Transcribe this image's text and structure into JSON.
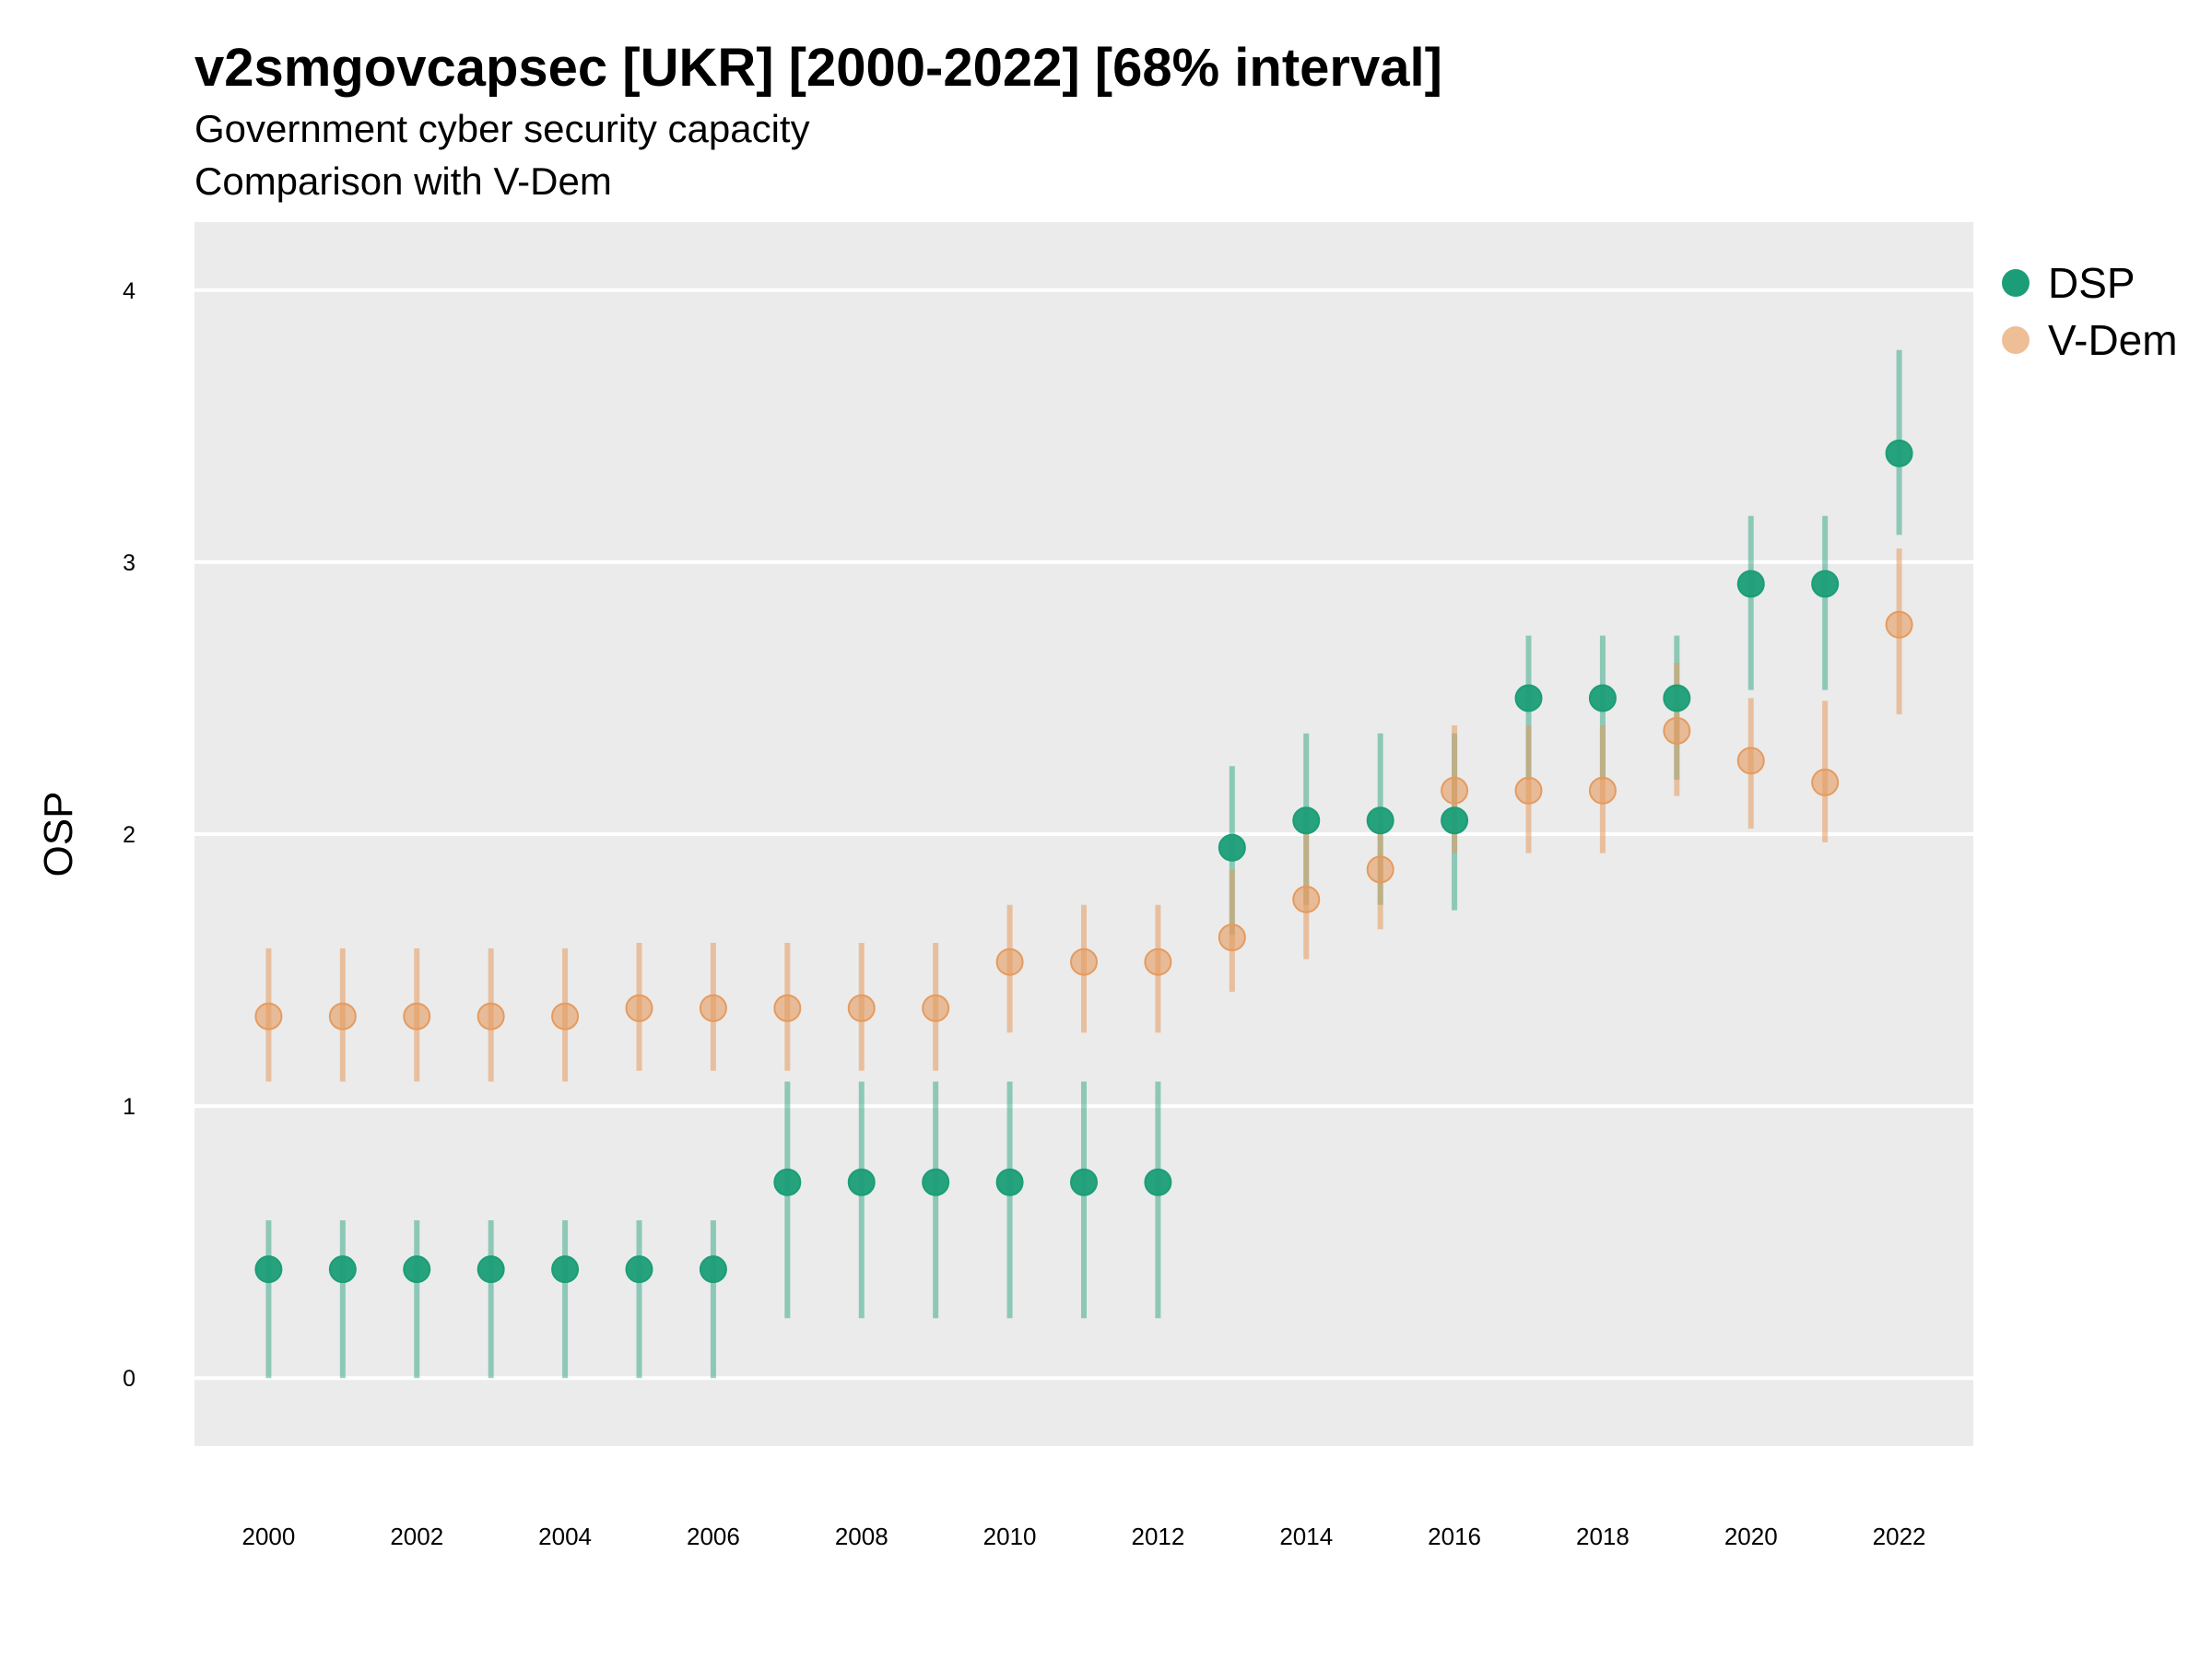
{
  "title": "v2smgovcapsec [UKR] [2000-2022] [68% interval]",
  "subtitle_line1": "Government cyber security capacity",
  "subtitle_line2": "Comparison with V-Dem",
  "colors": {
    "DSP": "#1b9e77",
    "V-Dem": "#e59b5f",
    "panel": "#ebebeb",
    "grid": "#ffffff"
  },
  "chart_data": {
    "type": "scatter",
    "ylabel": "OSP",
    "xlabel": "",
    "x_ticks": [
      "2000",
      "2002",
      "2004",
      "2006",
      "2008",
      "2010",
      "2012",
      "2014",
      "2016",
      "2018",
      "2020",
      "2022"
    ],
    "y_ticks": [
      "0",
      "1",
      "2",
      "3",
      "4"
    ],
    "ylim": [
      -0.25,
      4.25
    ],
    "xlim": [
      1999,
      2023
    ],
    "legend_position": "top-right",
    "series": [
      {
        "name": "DSP",
        "x": [
          2000,
          2001,
          2002,
          2003,
          2004,
          2005,
          2006,
          2007,
          2008,
          2009,
          2010,
          2011,
          2012,
          2013,
          2014,
          2015,
          2016,
          2017,
          2018,
          2019,
          2020,
          2021,
          2022
        ],
        "y": [
          0.4,
          0.4,
          0.4,
          0.4,
          0.4,
          0.4,
          0.4,
          0.72,
          0.72,
          0.72,
          0.72,
          0.72,
          0.72,
          1.95,
          2.05,
          2.05,
          2.05,
          2.5,
          2.5,
          2.5,
          2.92,
          2.92,
          3.4
        ],
        "lower": [
          0.0,
          0.0,
          0.0,
          0.0,
          0.0,
          0.0,
          0.0,
          0.22,
          0.22,
          0.22,
          0.22,
          0.22,
          0.22,
          1.63,
          1.74,
          1.74,
          1.72,
          2.2,
          2.2,
          2.2,
          2.53,
          2.53,
          3.1
        ],
        "upper": [
          0.58,
          0.58,
          0.58,
          0.58,
          0.58,
          0.58,
          0.58,
          1.09,
          1.09,
          1.09,
          1.09,
          1.09,
          1.09,
          2.25,
          2.37,
          2.37,
          2.37,
          2.73,
          2.73,
          2.73,
          3.17,
          3.17,
          3.78
        ]
      },
      {
        "name": "V-Dem",
        "x": [
          2000,
          2001,
          2002,
          2003,
          2004,
          2005,
          2006,
          2007,
          2008,
          2009,
          2010,
          2011,
          2012,
          2013,
          2014,
          2015,
          2016,
          2017,
          2018,
          2019,
          2020,
          2021,
          2022
        ],
        "y": [
          1.33,
          1.33,
          1.33,
          1.33,
          1.33,
          1.36,
          1.36,
          1.36,
          1.36,
          1.36,
          1.53,
          1.53,
          1.53,
          1.62,
          1.76,
          1.87,
          2.16,
          2.16,
          2.16,
          2.38,
          2.27,
          2.19,
          2.77
        ],
        "lower": [
          1.09,
          1.09,
          1.09,
          1.09,
          1.09,
          1.13,
          1.13,
          1.13,
          1.13,
          1.13,
          1.27,
          1.27,
          1.27,
          1.42,
          1.54,
          1.65,
          1.93,
          1.93,
          1.93,
          2.14,
          2.02,
          1.97,
          2.44
        ],
        "upper": [
          1.58,
          1.58,
          1.58,
          1.58,
          1.58,
          1.6,
          1.6,
          1.6,
          1.6,
          1.6,
          1.74,
          1.74,
          1.74,
          1.87,
          2.0,
          2.1,
          2.4,
          2.4,
          2.4,
          2.63,
          2.5,
          2.49,
          3.05
        ]
      }
    ]
  }
}
